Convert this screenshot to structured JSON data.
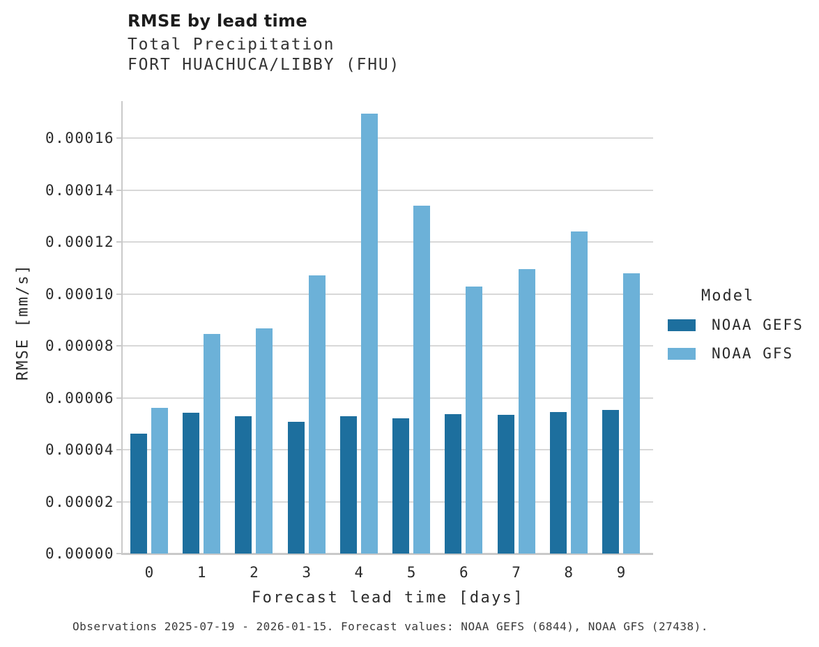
{
  "header": {
    "title": "RMSE by lead time",
    "subtitle1": "Total Precipitation",
    "subtitle2": "FORT HUACHUCA/LIBBY (FHU)"
  },
  "legend": {
    "title": "Model",
    "entries": [
      {
        "label": "NOAA GEFS",
        "color": "#1d6f9e"
      },
      {
        "label": "NOAA GFS",
        "color": "#6cb1d8"
      }
    ]
  },
  "footer": {
    "note": "Observations 2025-07-19 - 2026-01-15. Forecast values: NOAA GEFS (6844), NOAA GFS (27438)."
  },
  "chart_data": {
    "type": "bar",
    "title": "RMSE by lead time",
    "subtitle": [
      "Total Precipitation",
      "FORT HUACHUCA/LIBBY (FHU)"
    ],
    "xlabel": "Forecast lead time [days]",
    "ylabel": "RMSE [mm/s]",
    "categories": [
      "0",
      "1",
      "2",
      "3",
      "4",
      "5",
      "6",
      "7",
      "8",
      "9"
    ],
    "series": [
      {
        "name": "NOAA GEFS",
        "color": "#1d6f9e",
        "values": [
          4.63e-05,
          5.42e-05,
          5.29e-05,
          5.08e-05,
          5.29e-05,
          5.2e-05,
          5.36e-05,
          5.33e-05,
          5.44e-05,
          5.52e-05
        ]
      },
      {
        "name": "NOAA GFS",
        "color": "#6cb1d8",
        "values": [
          5.6e-05,
          8.45e-05,
          8.67e-05,
          0.000107,
          0.0001695,
          0.0001339,
          0.0001029,
          0.0001096,
          0.0001239,
          0.000108
        ]
      }
    ],
    "ylim": [
      0,
      0.00017423
    ],
    "yticks": [
      0,
      2e-05,
      4e-05,
      6e-05,
      8e-05,
      0.0001,
      0.00012,
      0.00014,
      0.00016
    ],
    "ytick_labels": [
      "0.00000",
      "0.00002",
      "0.00004",
      "0.00006",
      "0.00008",
      "0.00010",
      "0.00012",
      "0.00014",
      "0.00016"
    ],
    "grid": true,
    "legend_title": "Model",
    "legend_position": "right",
    "colors": {
      "grid": "#d8d8d8",
      "axis": "#c9c9c9",
      "text": "#2b2b2b"
    }
  }
}
